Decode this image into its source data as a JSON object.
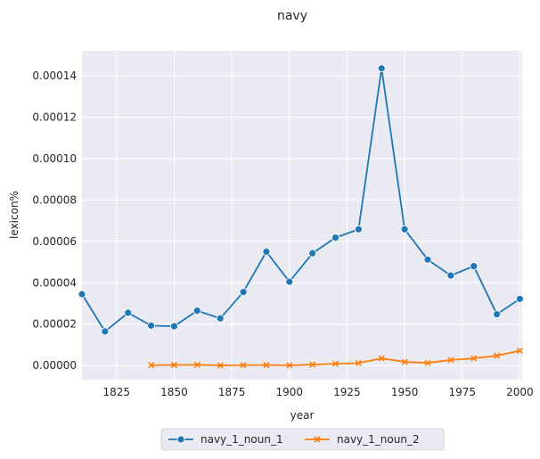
{
  "chart_data": {
    "type": "line",
    "title": "navy",
    "xlabel": "year",
    "ylabel": "lexicon%",
    "xlim": [
      1810,
      2001
    ],
    "ylim": [
      -6.8e-06,
      0.000152
    ],
    "xticks": [
      1825,
      1850,
      1875,
      1900,
      1925,
      1950,
      1975,
      2000
    ],
    "yticks": [
      0,
      2e-05,
      4e-05,
      6e-05,
      8e-05,
      0.0001,
      0.00012,
      0.00014
    ],
    "ytick_labels": [
      "0.00000",
      "0.00002",
      "0.00004",
      "0.00006",
      "0.00008",
      "0.00010",
      "0.00012",
      "0.00014"
    ],
    "grid": true,
    "legend_placement": "bottom-center",
    "series": [
      {
        "name": "navy_1_noun_1",
        "color": "#1f77b4",
        "marker": "circle",
        "x": [
          1810,
          1820,
          1830,
          1840,
          1850,
          1860,
          1870,
          1880,
          1890,
          1900,
          1910,
          1920,
          1930,
          1940,
          1950,
          1960,
          1970,
          1980,
          1990,
          2000
        ],
        "values": [
          3.45e-05,
          1.65e-05,
          2.55e-05,
          1.93e-05,
          1.9e-05,
          2.65e-05,
          2.28e-05,
          3.55e-05,
          5.5e-05,
          4.05e-05,
          5.42e-05,
          6.18e-05,
          6.58e-05,
          0.0001435,
          6.58e-05,
          5.12e-05,
          4.35e-05,
          4.8e-05,
          2.48e-05,
          3.22e-05
        ]
      },
      {
        "name": "navy_1_noun_2",
        "color": "#ff7f0e",
        "marker": "x",
        "x": [
          1840,
          1850,
          1860,
          1870,
          1880,
          1890,
          1900,
          1910,
          1920,
          1930,
          1940,
          1950,
          1960,
          1970,
          1980,
          1990,
          2000
        ],
        "values": [
          2e-07,
          3e-07,
          4e-07,
          1e-07,
          2e-07,
          3e-07,
          1e-07,
          5e-07,
          9e-07,
          1.2e-06,
          3.5e-06,
          1.8e-06,
          1.3e-06,
          2.7e-06,
          3.5e-06,
          4.8e-06,
          7.2e-06
        ]
      }
    ]
  }
}
